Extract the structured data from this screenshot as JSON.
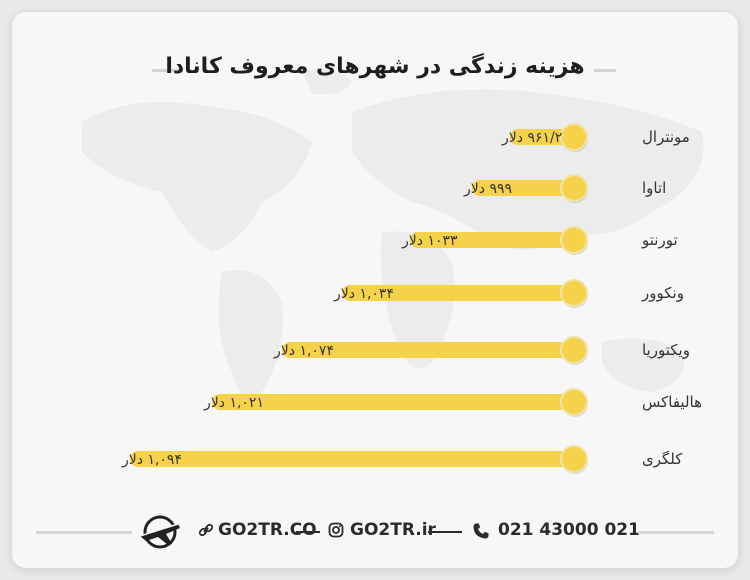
{
  "chart_data": {
    "type": "bar",
    "orientation": "horizontal",
    "title": "هزینه زندگی در شهرهای معروف کانادا",
    "categories": [
      "مونترال",
      "اتاوا",
      "تورنتو",
      "ونکوور",
      "ویکتوریا",
      "هالیفاکس",
      "کلگری"
    ],
    "values": [
      961.2,
      999,
      1033,
      1034,
      1074,
      1021,
      1094
    ],
    "value_labels": [
      "۹۶۱/۲ دلار",
      "۹۹۹ دلار",
      "۱۰۳۳ دلار",
      "۱,۰۳۴ دلار",
      "۱,۰۷۴ دلار",
      "۱,۰۲۱ دلار",
      "۱,۰۹۴ دلار"
    ],
    "bar_color": "#f6d24a",
    "knob_color": "#f6d24a",
    "grid": false,
    "legend": "none"
  },
  "footer": {
    "website": "GO2TR.CO",
    "instagram": "GO2TR.ir",
    "phone": "021 43000 021",
    "link_icon": "link-icon",
    "instagram_icon": "instagram-icon",
    "phone_icon": "phone-icon",
    "logo_icon": "airplane-logo-icon"
  }
}
